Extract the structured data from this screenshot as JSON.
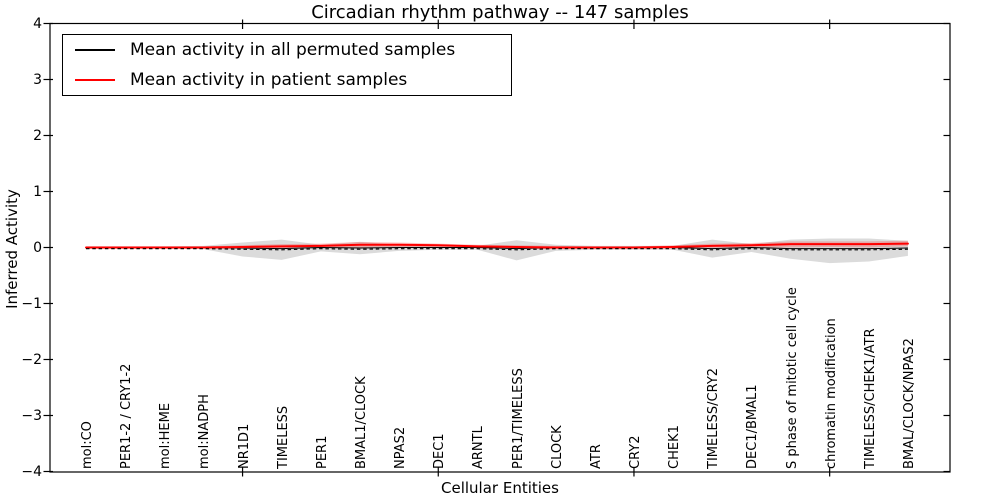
{
  "chart_data": {
    "type": "line",
    "title": "Circadian rhythm pathway -- 147 samples",
    "xlabel": "Cellular Entities",
    "ylabel": "Inferred Activity",
    "ylim": [
      -4,
      4
    ],
    "ytick_values": [
      4,
      3,
      2,
      1,
      0,
      -1,
      -2,
      -3,
      -4
    ],
    "ytick_labels": [
      "4",
      "3",
      "2",
      "1",
      "0",
      "−1",
      "−2",
      "−3",
      "−4"
    ],
    "x_major_tick_indices": [
      4,
      9,
      14,
      19
    ],
    "grid": false,
    "legend": {
      "position": "upper left",
      "entries": [
        {
          "label": "Mean activity in all permuted samples",
          "color": "#000000"
        },
        {
          "label": "Mean activity in patient samples",
          "color": "#ff0000"
        }
      ]
    },
    "categories": [
      "mol:CO",
      "PER1-2 / CRY1-2",
      "mol:HEME",
      "mol:NADPH",
      "NR1D1",
      "TIMELESS",
      "PER1",
      "BMAL1/CLOCK",
      "NPAS2",
      "DEC1",
      "ARNTL",
      "PER1/TIMELESS",
      "CLOCK",
      "ATR",
      "CRY2",
      "CHEK1",
      "TIMELESS/CRY2",
      "DEC1/BMAL1",
      "S phase of mitotic cell cycle",
      "chromatin modification",
      "TIMELESS/CHEK1/ATR",
      "BMAL/CLOCK/NPAS2"
    ],
    "series": [
      {
        "name": "Mean activity in all permuted samples",
        "color": "#000000",
        "style": "solid-with-dash-overlay",
        "values": [
          0.0,
          0.0,
          0.0,
          0.0,
          -0.01,
          -0.02,
          0.0,
          -0.01,
          0.0,
          0.0,
          0.0,
          -0.02,
          0.0,
          0.0,
          0.0,
          0.0,
          -0.02,
          0.0,
          -0.02,
          -0.02,
          -0.02,
          -0.01
        ]
      },
      {
        "name": "Mean activity in patient samples",
        "color": "#ff0000",
        "style": "solid",
        "values": [
          0.0,
          0.0,
          0.0,
          0.0,
          0.01,
          0.02,
          0.03,
          0.05,
          0.05,
          0.04,
          0.02,
          0.01,
          0.0,
          0.0,
          0.0,
          0.01,
          0.03,
          0.04,
          0.06,
          0.06,
          0.06,
          0.07
        ]
      }
    ],
    "bands": [
      {
        "name": "permuted-samples-range",
        "fill": "#dbdbdb",
        "upper": [
          0.02,
          0.02,
          0.02,
          0.03,
          0.09,
          0.14,
          0.05,
          0.1,
          0.05,
          0.03,
          0.03,
          0.13,
          0.05,
          0.03,
          0.03,
          0.03,
          0.14,
          0.06,
          0.14,
          0.16,
          0.16,
          0.12
        ],
        "lower": [
          -0.02,
          -0.02,
          -0.02,
          -0.03,
          -0.16,
          -0.22,
          -0.07,
          -0.12,
          -0.06,
          -0.04,
          -0.04,
          -0.23,
          -0.06,
          -0.04,
          -0.04,
          -0.04,
          -0.18,
          -0.08,
          -0.2,
          -0.28,
          -0.25,
          -0.15
        ]
      },
      {
        "name": "patient-samples-range",
        "fill": "rgba(255,0,0,0.22)",
        "upper": [
          0.02,
          0.02,
          0.02,
          0.02,
          0.04,
          0.06,
          0.07,
          0.1,
          0.09,
          0.07,
          0.05,
          0.04,
          0.03,
          0.02,
          0.02,
          0.04,
          0.07,
          0.08,
          0.11,
          0.11,
          0.11,
          0.12
        ],
        "lower": [
          -0.02,
          -0.02,
          -0.02,
          -0.02,
          -0.02,
          -0.02,
          -0.01,
          0.0,
          0.01,
          0.01,
          -0.01,
          -0.02,
          -0.03,
          -0.02,
          -0.02,
          -0.02,
          -0.01,
          0.0,
          0.0,
          0.01,
          0.0,
          0.02
        ]
      }
    ]
  },
  "colors": {
    "background": "#ffffff",
    "axis": "#000000"
  }
}
